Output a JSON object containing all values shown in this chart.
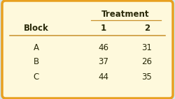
{
  "title": "Treatment",
  "col_header": [
    "1",
    "2"
  ],
  "row_header_label": "Block",
  "rows": [
    {
      "block": "A",
      "values": [
        46,
        31
      ]
    },
    {
      "block": "B",
      "values": [
        37,
        26
      ]
    },
    {
      "block": "C",
      "values": [
        44,
        35
      ]
    }
  ],
  "bg_color": "#FEF9DC",
  "border_color": "#E8A020",
  "header_color": "#2a2a0a",
  "text_color": "#2a2a0a",
  "outer_bg": "#CEE5F2",
  "treatment_underline_color": "#C8902A",
  "hline_color": "#C8902A"
}
